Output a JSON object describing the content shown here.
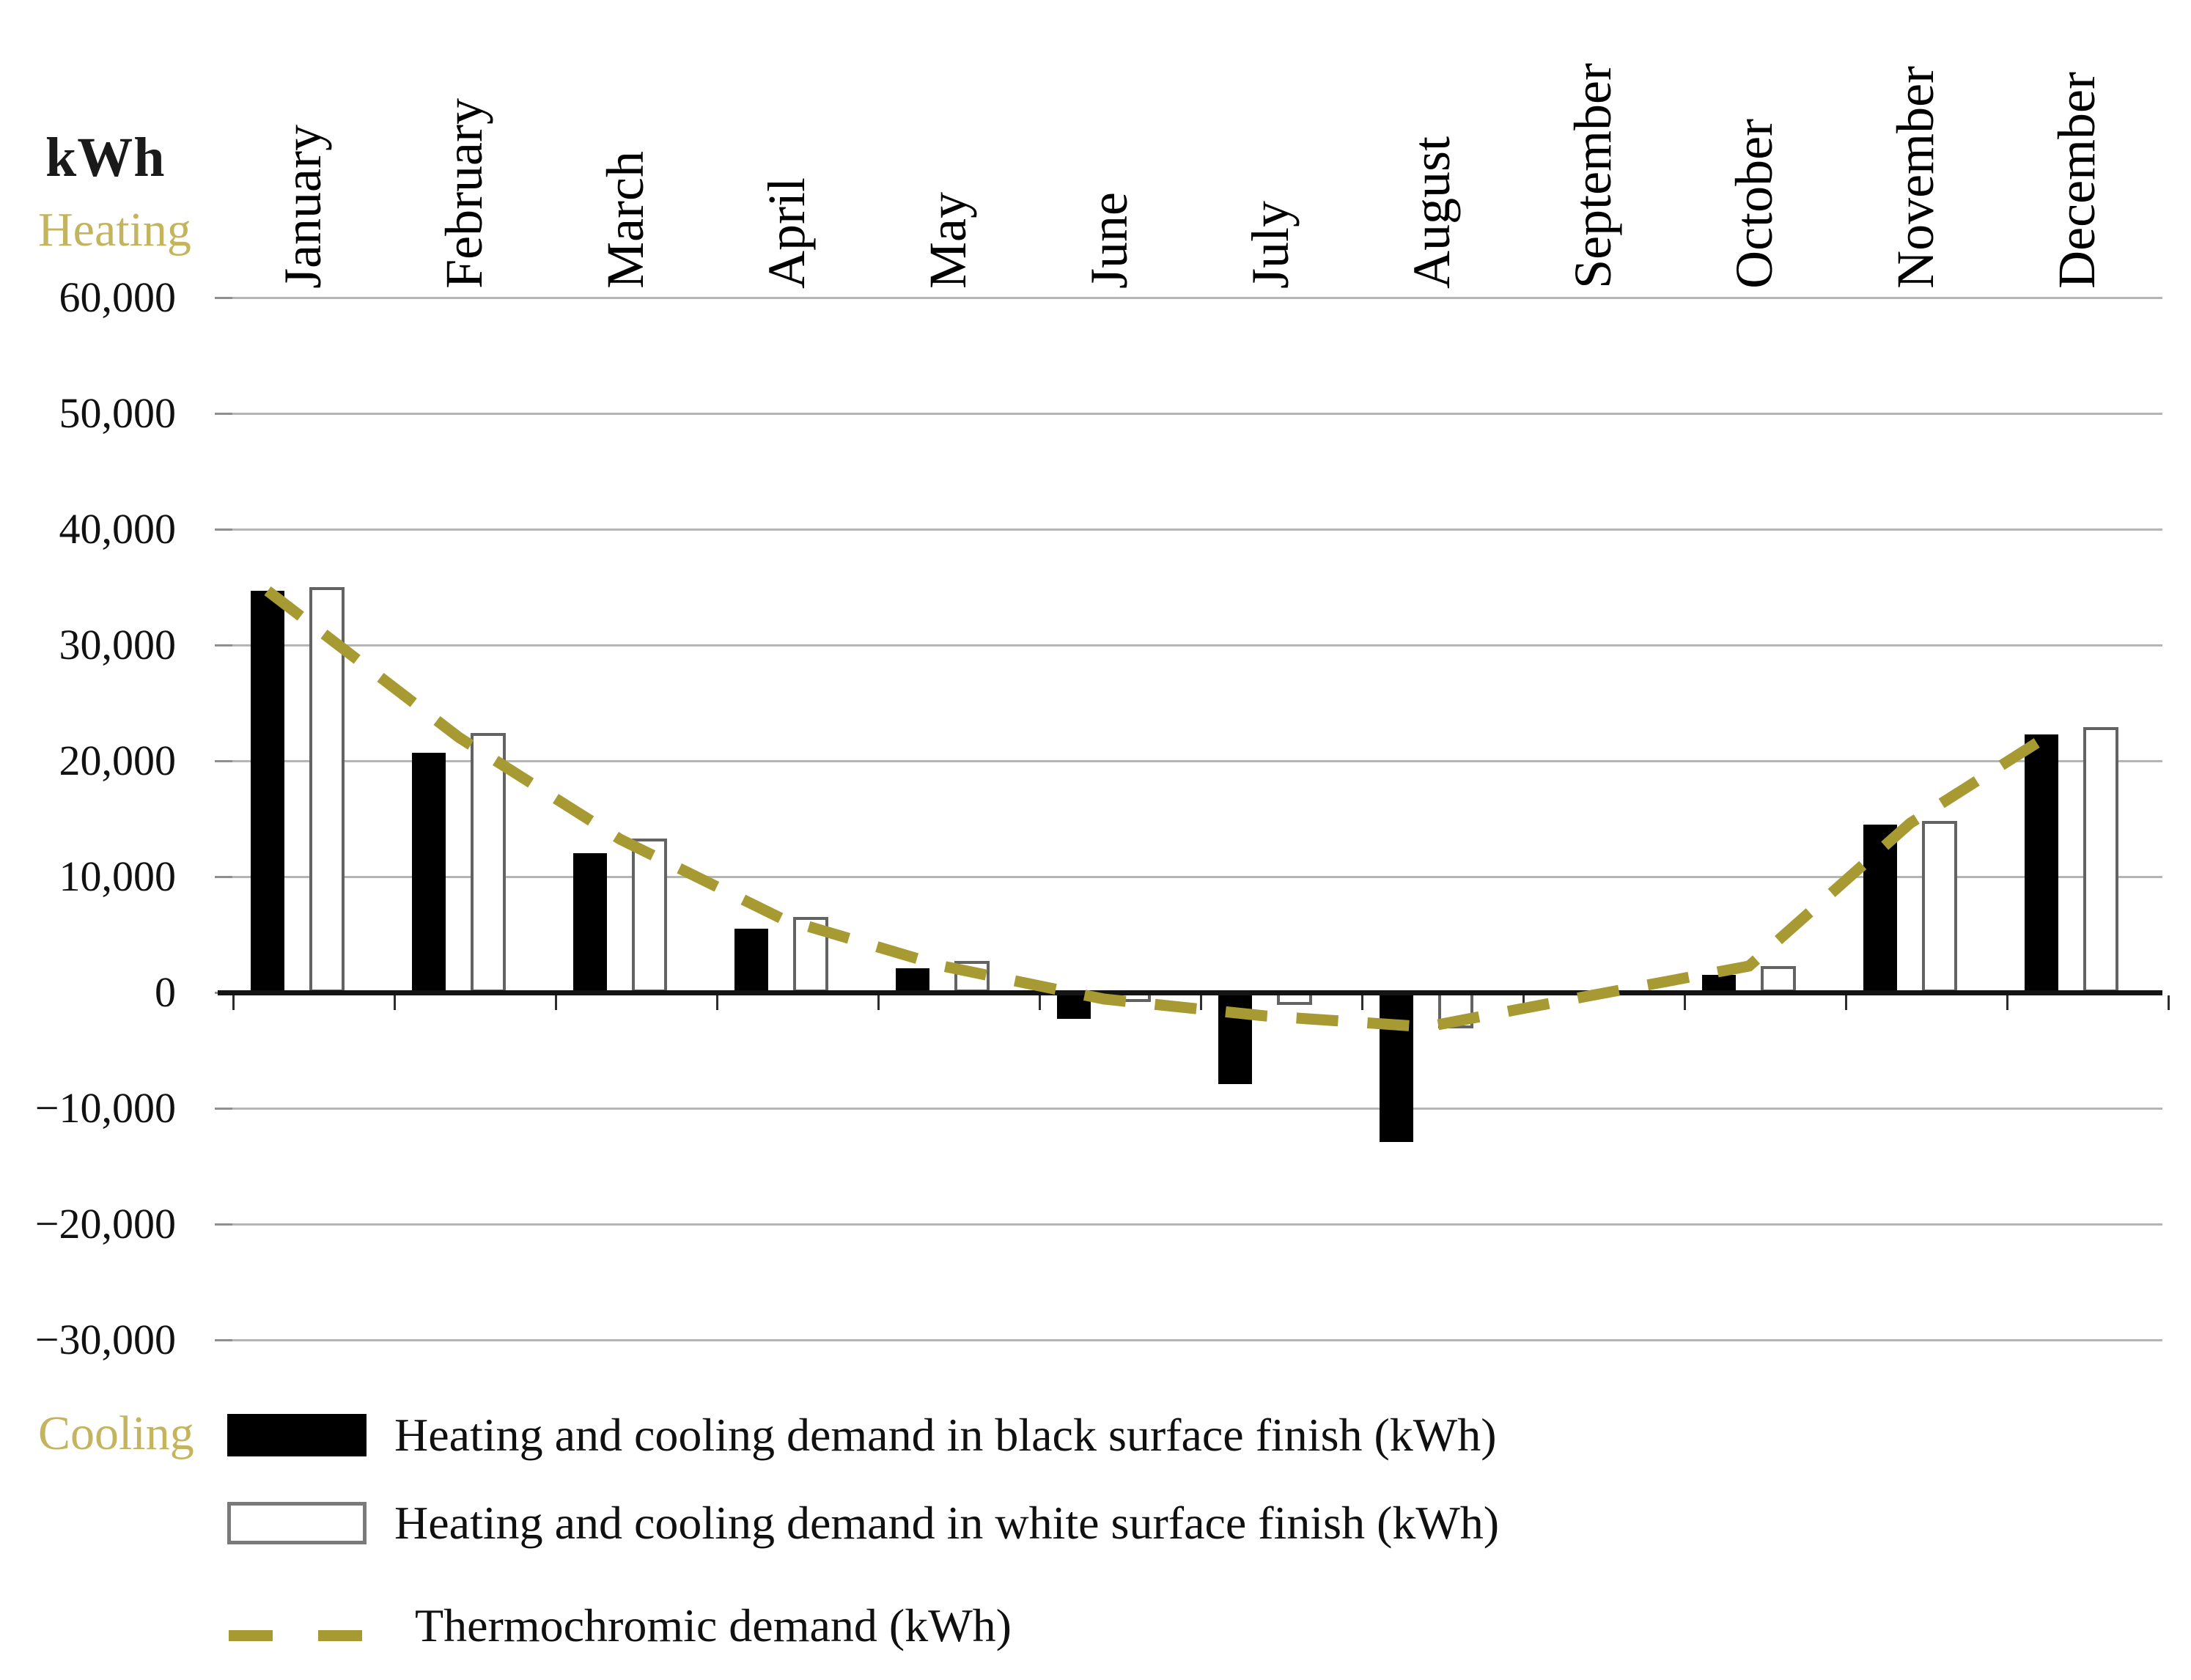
{
  "figure": {
    "unit_label": "kWh",
    "heating_label": "Heating",
    "cooling_label": "Cooling"
  },
  "chart_data": {
    "type": "bar",
    "subtype": "grouped-bars-with-dashed-line-overlay",
    "title": "",
    "xlabel": "",
    "ylabel": "kWh",
    "ylim": [
      -30000,
      60000
    ],
    "grid": true,
    "legend_position": "bottom-left",
    "categories": [
      "January",
      "February",
      "March",
      "April",
      "May",
      "June",
      "July",
      "August",
      "September",
      "October",
      "November",
      "December"
    ],
    "y_ticks": [
      {
        "value": 60000,
        "label": "60,000"
      },
      {
        "value": 50000,
        "label": "50,000"
      },
      {
        "value": 40000,
        "label": "40,000"
      },
      {
        "value": 30000,
        "label": "30,000"
      },
      {
        "value": 20000,
        "label": "20,000"
      },
      {
        "value": 10000,
        "label": "10,000"
      },
      {
        "value": 0,
        "label": "0"
      },
      {
        "value": -10000,
        "label": "−10,000"
      },
      {
        "value": -20000,
        "label": "−20,000"
      },
      {
        "value": -30000,
        "label": "−30,000"
      }
    ],
    "series": [
      {
        "name": "Heating and cooling demand in black surface finish  (kWh)",
        "type": "bar",
        "fill": "black",
        "values": [
          34700,
          20700,
          12000,
          5500,
          2100,
          -2300,
          -7900,
          -12900,
          0,
          1500,
          14500,
          22300
        ]
      },
      {
        "name": "Heating and cooling demand in white surface finish  (kWh)",
        "type": "bar",
        "fill": "white-outlined",
        "values": [
          35000,
          22400,
          13300,
          6500,
          2700,
          -800,
          -1100,
          -3100,
          0,
          2300,
          14800,
          22900
        ]
      },
      {
        "name": "Thermochromic demand (kWh)",
        "type": "dashed-line",
        "values": [
          34700,
          22000,
          13200,
          6400,
          2300,
          -600,
          -2000,
          -3000,
          -300,
          2300,
          14600,
          22400
        ]
      }
    ],
    "colors": {
      "black_bar": "#000000",
      "white_bar_border": "#636363",
      "thermochromic": "#a89a33",
      "axis_side_labels": "#c4b45e",
      "gridline": "#b5b5b5",
      "tick_mark": "#8f8f8f",
      "axis": "#141414",
      "text": "#000000"
    }
  }
}
